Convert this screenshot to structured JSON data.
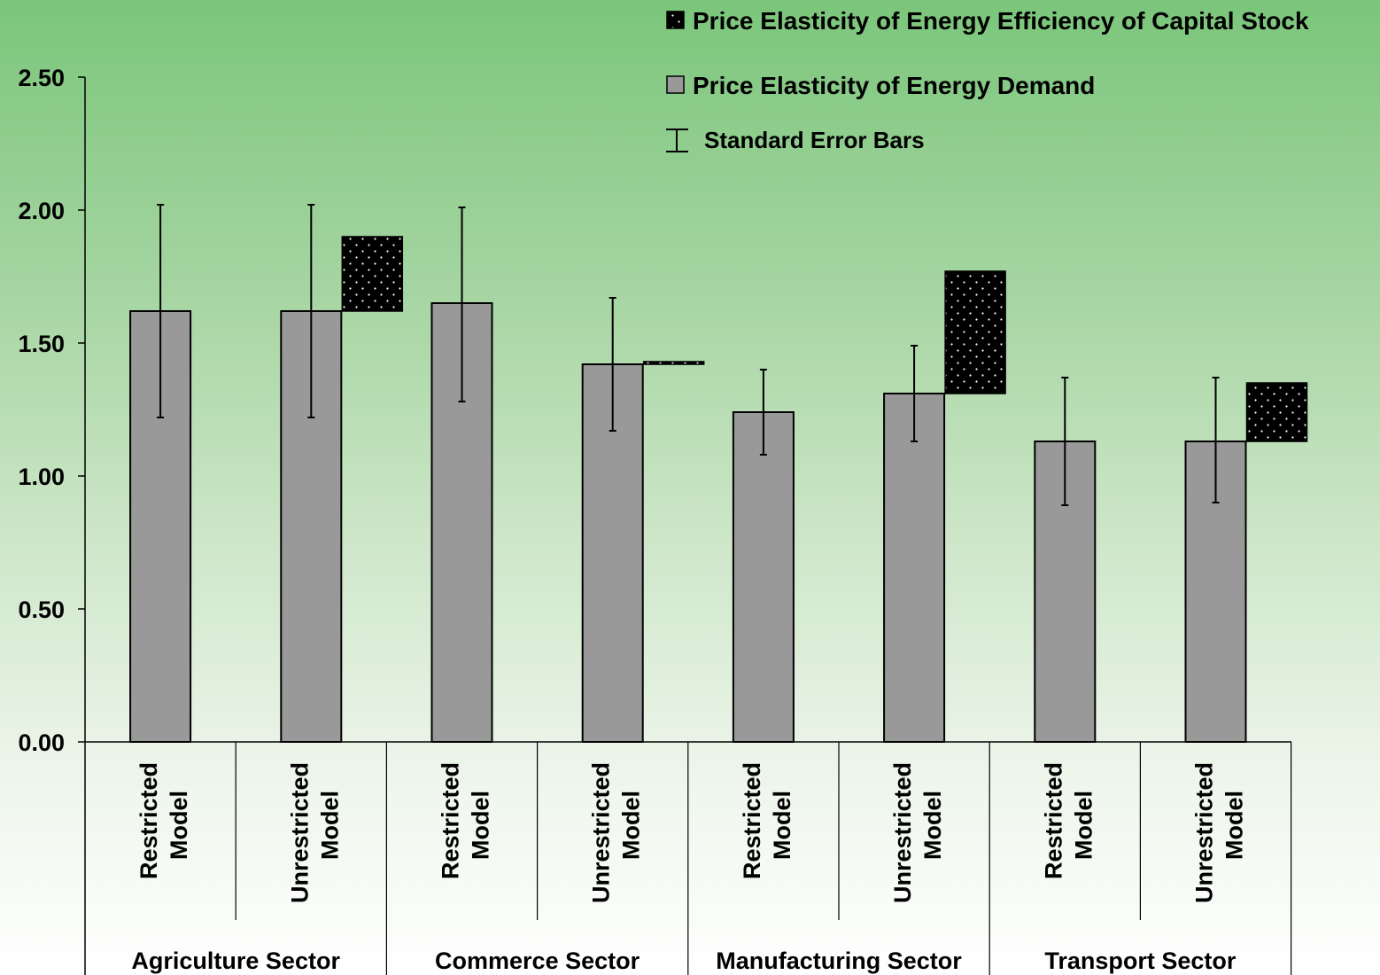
{
  "chart_data": {
    "type": "bar",
    "ylim": [
      0,
      2.5
    ],
    "yticks": [
      "0.00",
      "0.50",
      "1.00",
      "1.50",
      "2.00",
      "2.50"
    ],
    "ytick_values": [
      0,
      0.5,
      1.0,
      1.5,
      2.0,
      2.5
    ],
    "groups": [
      "Agriculture Sector",
      "Commerce Sector",
      "Manufacturing Sector",
      "Transport Sector"
    ],
    "categories": [
      {
        "group": 0,
        "line1": "Restricted",
        "line2": "Model"
      },
      {
        "group": 0,
        "line1": "Unrestricted",
        "line2": "Model"
      },
      {
        "group": 1,
        "line1": "Restricted",
        "line2": "Model"
      },
      {
        "group": 1,
        "line1": "Unrestricted",
        "line2": "Model"
      },
      {
        "group": 2,
        "line1": "Restricted",
        "line2": "Model"
      },
      {
        "group": 2,
        "line1": "Unrestricted",
        "line2": "Model"
      },
      {
        "group": 3,
        "line1": "Restricted",
        "line2": "Model"
      },
      {
        "group": 3,
        "line1": "Unrestricted",
        "line2": "Model"
      }
    ],
    "series": [
      {
        "name": "Price Elasticity of Energy Demand",
        "color": "#999999",
        "values": [
          1.62,
          1.62,
          1.65,
          1.42,
          1.24,
          1.31,
          1.13,
          1.13
        ],
        "error_low": [
          1.22,
          1.22,
          1.28,
          1.17,
          1.08,
          1.13,
          0.89,
          0.9
        ],
        "error_high": [
          2.02,
          2.02,
          2.01,
          1.67,
          1.4,
          1.49,
          1.37,
          1.37
        ]
      },
      {
        "name": "Price Elasticity of Energy Efficiency of Capital Stock",
        "color": "#000000",
        "stacked_on_previous_bar": true,
        "values": [
          null,
          0.28,
          null,
          0.01,
          null,
          0.46,
          null,
          0.22
        ]
      }
    ],
    "legend": {
      "position": "top-right",
      "error_bars_label": "Standard Error Bars"
    }
  }
}
